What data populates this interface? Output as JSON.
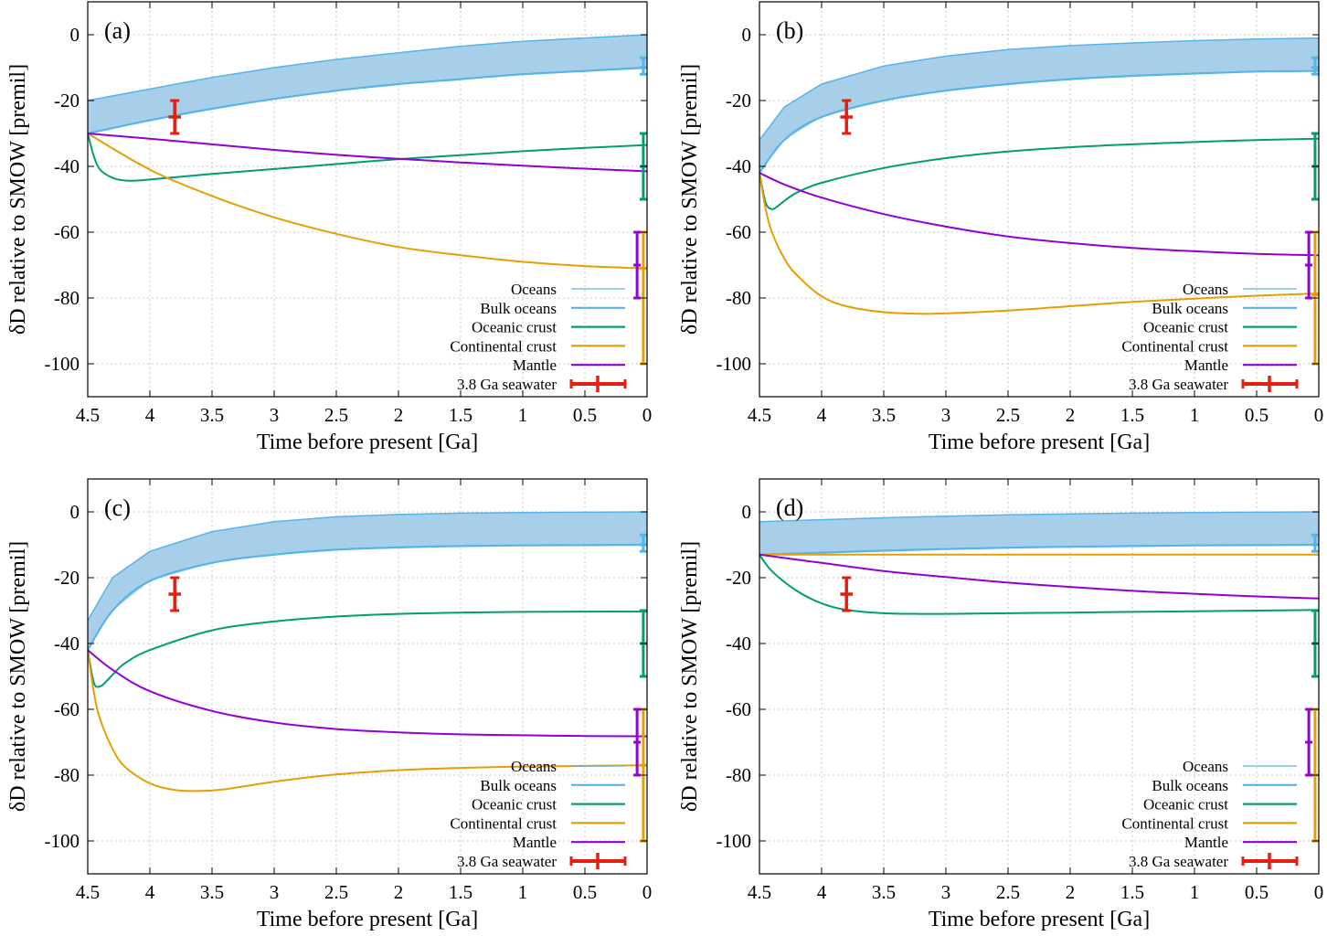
{
  "figure": {
    "xlabel": "Time before present [Ga]",
    "ylabel": "δD relative to SMOW [premil]",
    "xticks": [
      "4.5",
      "4",
      "3.5",
      "3",
      "2.5",
      "2",
      "1.5",
      "1",
      "0.5",
      "0"
    ],
    "yticks": [
      "0",
      "-20",
      "-40",
      "-60",
      "-80",
      "-100"
    ],
    "legend": [
      "Oceans",
      "Bulk oceans",
      "Oceanic crust",
      "Continental crust",
      "Mantle",
      "3.8 Ga seawater"
    ]
  },
  "colors": {
    "oceans_fill": "#a8cfea",
    "oceans": "#56b4e9",
    "oceanic_crust": "#009e73",
    "continental_crust": "#e69f00",
    "mantle": "#9400d3",
    "seawater": "#e51e10",
    "grid": "#c8c8c8"
  },
  "chart_data": [
    {
      "type": "line",
      "panel": "(a)",
      "xlabel": "Time before present [Ga]",
      "ylabel": "δD relative to SMOW [premil]",
      "xlim": [
        4.5,
        0
      ],
      "ylim": [
        -110,
        10
      ],
      "grid": true,
      "legend_position": "bottom-right",
      "series": [
        {
          "name": "Oceans",
          "kind": "band",
          "x": [
            4.5,
            4.0,
            3.5,
            3.0,
            2.5,
            2.0,
            1.5,
            1.0,
            0.5,
            0.0
          ],
          "upper": [
            -20,
            -16.5,
            -13,
            -10,
            -7.5,
            -5.5,
            -3.5,
            -2,
            -1,
            0
          ],
          "lower": [
            -30,
            -26,
            -22.5,
            -19.5,
            -17,
            -15,
            -13.5,
            -12,
            -11,
            -10
          ]
        },
        {
          "name": "Bulk oceans",
          "x": [
            4.5,
            4.0,
            3.5,
            3.0,
            2.5,
            2.0,
            1.5,
            1.0,
            0.5,
            0.0
          ],
          "y": [
            -30,
            -26,
            -22.5,
            -19.5,
            -17,
            -15,
            -13.5,
            -12,
            -11,
            -10
          ]
        },
        {
          "name": "Oceanic crust",
          "x": [
            4.5,
            4.45,
            4.4,
            4.3,
            4.2,
            4.1,
            4.0,
            3.5,
            3.0,
            2.5,
            2.0,
            1.5,
            1.0,
            0.5,
            0.0
          ],
          "y": [
            -30,
            -37,
            -41,
            -43.5,
            -44.3,
            -44.3,
            -44,
            -42.3,
            -40.8,
            -39.3,
            -37.8,
            -36.6,
            -35.4,
            -34.4,
            -33.5
          ]
        },
        {
          "name": "Continental crust",
          "x": [
            4.5,
            4.0,
            3.5,
            3.0,
            2.5,
            2.0,
            1.5,
            1.0,
            0.5,
            0.0
          ],
          "y": [
            -30,
            -41,
            -49,
            -55.5,
            -60.5,
            -64.5,
            -67,
            -69,
            -70.3,
            -71
          ]
        },
        {
          "name": "Mantle",
          "x": [
            4.5,
            4.0,
            3.5,
            3.0,
            2.5,
            2.0,
            1.5,
            1.0,
            0.5,
            0.0
          ],
          "y": [
            -30,
            -31.6,
            -33.3,
            -35,
            -36.5,
            -37.7,
            -38.8,
            -39.8,
            -40.7,
            -41.5
          ]
        }
      ],
      "present_day_ranges": [
        {
          "name": "Oceans",
          "x": 0.03,
          "y": -10,
          "ymin": -12,
          "ymax": -7
        },
        {
          "name": "Oceanic crust",
          "x": 0.03,
          "y": -40,
          "ymin": -50,
          "ymax": -30
        },
        {
          "name": "Continental crust",
          "x": 0.03,
          "y": -71,
          "ymin": -100,
          "ymax": -60
        },
        {
          "name": "Mantle",
          "x": 0.08,
          "y": -70,
          "ymin": -80,
          "ymax": -60
        }
      ],
      "seawater_point": {
        "name": "3.8 Ga seawater",
        "x": 3.8,
        "y": -25,
        "xmin": 3.75,
        "xmax": 3.85,
        "ymin": -30,
        "ymax": -20
      }
    },
    {
      "type": "line",
      "panel": "(b)",
      "xlabel": "Time before present [Ga]",
      "ylabel": "δD relative to SMOW [premil]",
      "xlim": [
        4.5,
        0
      ],
      "ylim": [
        -110,
        10
      ],
      "grid": true,
      "legend_position": "bottom-right",
      "series": [
        {
          "name": "Oceans",
          "kind": "band",
          "x": [
            4.5,
            4.3,
            4.0,
            3.5,
            3.0,
            2.5,
            2.0,
            1.5,
            1.0,
            0.5,
            0.0
          ],
          "upper": [
            -32,
            -22,
            -15,
            -9.5,
            -6.5,
            -4.5,
            -3.3,
            -2.5,
            -1.8,
            -1.3,
            -1
          ]
        },
        {
          "name": "Bulk oceans",
          "x": [
            4.5,
            4.3,
            4.0,
            3.5,
            3.0,
            2.5,
            2.0,
            1.5,
            1.0,
            0.5,
            0.0
          ],
          "y": [
            -42,
            -32,
            -25,
            -20,
            -17,
            -15,
            -13.5,
            -12.5,
            -11.8,
            -11.2,
            -11
          ]
        },
        {
          "name": "Oceanic crust",
          "x": [
            4.5,
            4.45,
            4.4,
            4.35,
            4.3,
            4.2,
            4.0,
            3.5,
            3.0,
            2.5,
            2.0,
            1.5,
            1.0,
            0.5,
            0.0
          ],
          "y": [
            -42,
            -51,
            -53,
            -52,
            -50.5,
            -48,
            -45,
            -40.5,
            -37.5,
            -35.5,
            -34.2,
            -33.3,
            -32.6,
            -32,
            -31.6
          ]
        },
        {
          "name": "Continental crust",
          "x": [
            4.5,
            4.45,
            4.4,
            4.3,
            4.2,
            4.0,
            3.8,
            3.5,
            3.2,
            3.0,
            2.5,
            2.0,
            1.5,
            1.0,
            0.5,
            0.0
          ],
          "y": [
            -42,
            -53,
            -60,
            -68,
            -73,
            -79.5,
            -82.5,
            -84.3,
            -84.8,
            -84.7,
            -83.8,
            -82.5,
            -81.2,
            -80.2,
            -79.3,
            -78.6
          ]
        },
        {
          "name": "Mantle",
          "x": [
            4.5,
            4.3,
            4.0,
            3.5,
            3.0,
            2.5,
            2.0,
            1.5,
            1.0,
            0.5,
            0.0
          ],
          "y": [
            -42,
            -45.5,
            -49.5,
            -54.5,
            -58.3,
            -61.3,
            -63.3,
            -64.8,
            -65.8,
            -66.6,
            -67
          ]
        }
      ],
      "present_day_ranges": [
        {
          "name": "Oceans",
          "x": 0.03,
          "y": -10,
          "ymin": -12,
          "ymax": -7
        },
        {
          "name": "Oceanic crust",
          "x": 0.03,
          "y": -40,
          "ymin": -50,
          "ymax": -30
        },
        {
          "name": "Continental crust",
          "x": 0.03,
          "y": -79,
          "ymin": -100,
          "ymax": -60
        },
        {
          "name": "Mantle",
          "x": 0.08,
          "y": -70,
          "ymin": -80,
          "ymax": -60
        }
      ],
      "seawater_point": {
        "name": "3.8 Ga seawater",
        "x": 3.8,
        "y": -25,
        "xmin": 3.75,
        "xmax": 3.85,
        "ymin": -30,
        "ymax": -20
      }
    },
    {
      "type": "line",
      "panel": "(c)",
      "xlabel": "Time before present [Ga]",
      "ylabel": "δD relative to SMOW [premil]",
      "xlim": [
        4.5,
        0
      ],
      "ylim": [
        -110,
        10
      ],
      "grid": true,
      "legend_position": "bottom-right",
      "series": [
        {
          "name": "Oceans",
          "kind": "band",
          "x": [
            4.5,
            4.3,
            4.0,
            3.5,
            3.0,
            2.5,
            2.0,
            1.5,
            1.0,
            0.5,
            0.0
          ],
          "upper": [
            -33,
            -20,
            -12,
            -6,
            -3,
            -1.5,
            -0.8,
            -0.4,
            -0.2,
            -0.1,
            0
          ]
        },
        {
          "name": "Bulk oceans",
          "x": [
            4.5,
            4.3,
            4.0,
            3.5,
            3.0,
            2.5,
            2.0,
            1.5,
            1.0,
            0.5,
            0.0
          ],
          "y": [
            -42,
            -30,
            -21,
            -15.5,
            -13,
            -11.5,
            -10.8,
            -10.4,
            -10.2,
            -10.1,
            -10
          ]
        },
        {
          "name": "Oceanic crust",
          "x": [
            4.5,
            4.45,
            4.4,
            4.35,
            4.3,
            4.2,
            4.0,
            3.5,
            3.0,
            2.5,
            2.0,
            1.5,
            1.0,
            0.5,
            0.0
          ],
          "y": [
            -42,
            -52,
            -53,
            -51.5,
            -49.5,
            -46,
            -42,
            -36,
            -33.3,
            -31.8,
            -31,
            -30.6,
            -30.4,
            -30.3,
            -30.3
          ]
        },
        {
          "name": "Continental crust",
          "x": [
            4.5,
            4.45,
            4.4,
            4.3,
            4.2,
            4.0,
            3.8,
            3.6,
            3.4,
            3.0,
            2.5,
            2.0,
            1.5,
            1.0,
            0.5,
            0.0
          ],
          "y": [
            -42,
            -55,
            -63,
            -72,
            -77.5,
            -82.5,
            -84.5,
            -84.8,
            -84.3,
            -82,
            -79.8,
            -78.5,
            -77.8,
            -77.4,
            -77.2,
            -77
          ]
        },
        {
          "name": "Mantle",
          "x": [
            4.5,
            4.3,
            4.0,
            3.5,
            3.0,
            2.5,
            2.0,
            1.5,
            1.0,
            0.5,
            0.0
          ],
          "y": [
            -42,
            -48,
            -54.5,
            -60.5,
            -64,
            -66,
            -67,
            -67.6,
            -67.9,
            -68.1,
            -68.2
          ]
        }
      ],
      "present_day_ranges": [
        {
          "name": "Oceans",
          "x": 0.03,
          "y": -10,
          "ymin": -12,
          "ymax": -7
        },
        {
          "name": "Oceanic crust",
          "x": 0.03,
          "y": -40,
          "ymin": -50,
          "ymax": -30
        },
        {
          "name": "Continental crust",
          "x": 0.03,
          "y": -77,
          "ymin": -100,
          "ymax": -60
        },
        {
          "name": "Mantle",
          "x": 0.08,
          "y": -70,
          "ymin": -80,
          "ymax": -60
        }
      ],
      "seawater_point": {
        "name": "3.8 Ga seawater",
        "x": 3.8,
        "y": -25,
        "xmin": 3.75,
        "xmax": 3.85,
        "ymin": -30,
        "ymax": -20
      }
    },
    {
      "type": "line",
      "panel": "(d)",
      "xlabel": "Time before present [Ga]",
      "ylabel": "δD relative to SMOW [premil]",
      "xlim": [
        4.5,
        0
      ],
      "ylim": [
        -110,
        10
      ],
      "grid": true,
      "legend_position": "bottom-right",
      "series": [
        {
          "name": "Oceans",
          "kind": "band",
          "x": [
            4.5,
            4.0,
            3.5,
            3.0,
            2.5,
            2.0,
            1.5,
            1.0,
            0.5,
            0.0
          ],
          "upper": [
            -3,
            -2.4,
            -1.8,
            -1.3,
            -0.9,
            -0.6,
            -0.4,
            -0.2,
            -0.1,
            0
          ]
        },
        {
          "name": "Bulk oceans",
          "x": [
            4.5,
            4.0,
            3.5,
            3.0,
            2.5,
            2.0,
            1.5,
            1.0,
            0.5,
            0.0
          ],
          "y": [
            -13,
            -12.4,
            -11.8,
            -11.3,
            -10.9,
            -10.6,
            -10.4,
            -10.2,
            -10.1,
            -10
          ]
        },
        {
          "name": "Oceanic crust",
          "x": [
            4.5,
            4.4,
            4.2,
            4.0,
            3.8,
            3.5,
            3.2,
            3.0,
            2.5,
            2.0,
            1.5,
            1.0,
            0.5,
            0.0
          ],
          "y": [
            -13,
            -18,
            -24,
            -27.8,
            -29.8,
            -30.8,
            -31,
            -31,
            -30.8,
            -30.6,
            -30.4,
            -30.2,
            -30,
            -29.8
          ]
        },
        {
          "name": "Continental crust",
          "x": [
            4.5,
            4.0,
            3.0,
            2.0,
            1.0,
            0.0
          ],
          "y": [
            -13,
            -13,
            -13,
            -13,
            -13,
            -13
          ]
        },
        {
          "name": "Mantle",
          "x": [
            4.5,
            4.0,
            3.5,
            3.0,
            2.5,
            2.0,
            1.5,
            1.0,
            0.5,
            0.0
          ],
          "y": [
            -13,
            -15.5,
            -18,
            -19.8,
            -21.5,
            -22.8,
            -24,
            -24.9,
            -25.7,
            -26.3
          ]
        }
      ],
      "present_day_ranges": [
        {
          "name": "Oceans",
          "x": 0.03,
          "y": -10,
          "ymin": -12,
          "ymax": -7
        },
        {
          "name": "Oceanic crust",
          "x": 0.03,
          "y": -40,
          "ymin": -50,
          "ymax": -30
        },
        {
          "name": "Continental crust",
          "x": 0.03,
          "y": -80,
          "ymin": -100,
          "ymax": -60
        },
        {
          "name": "Mantle",
          "x": 0.08,
          "y": -70,
          "ymin": -80,
          "ymax": -60
        }
      ],
      "seawater_point": {
        "name": "3.8 Ga seawater",
        "x": 3.8,
        "y": -25,
        "xmin": 3.75,
        "xmax": 3.85,
        "ymin": -30,
        "ymax": -20
      }
    }
  ]
}
